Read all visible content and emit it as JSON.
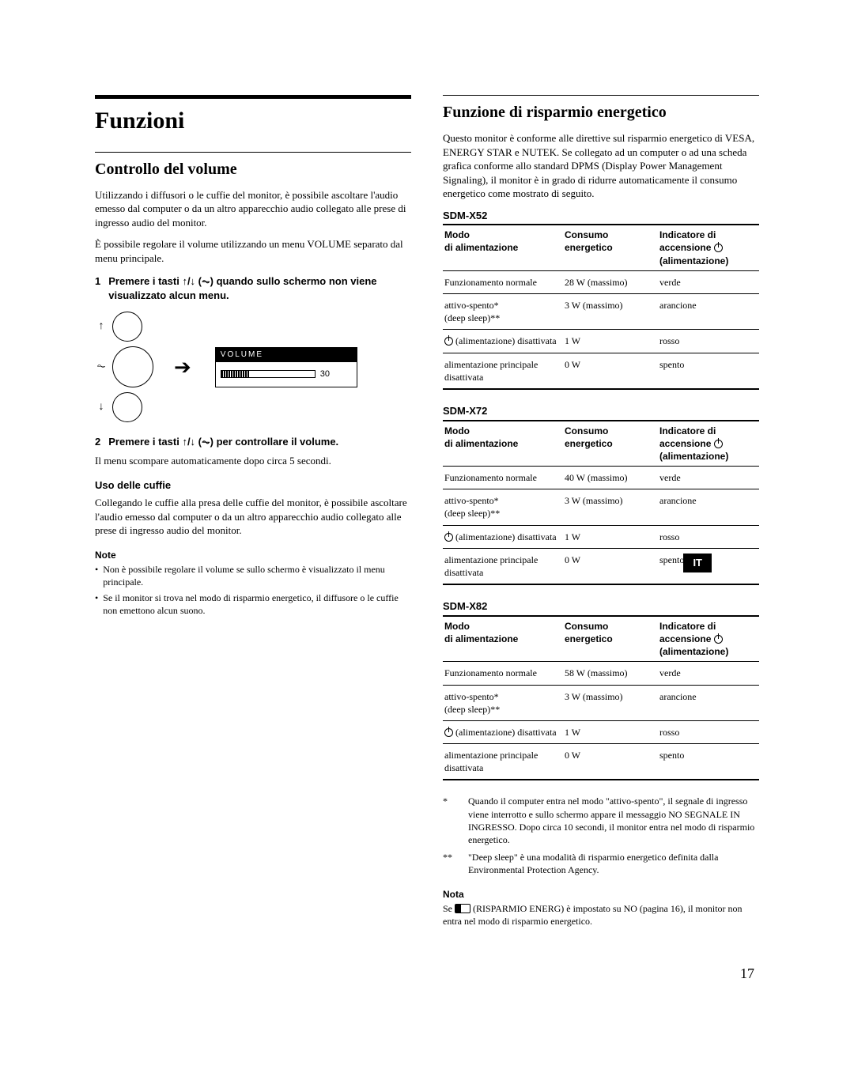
{
  "left": {
    "h1": "Funzioni",
    "h2": "Controllo del volume",
    "intro": "Utilizzando i diffusori o le cuffie del monitor, è possibile ascoltare l'audio emesso dal computer o da un altro apparecchio audio collegato alle prese di ingresso audio del monitor.",
    "intro2": "È possibile regolare il volume utilizzando un menu VOLUME separato dal menu principale.",
    "step1_num": "1",
    "step1": "Premere i tasti ↑/↓ (⏦) quando sullo schermo non viene visualizzato alcun menu.",
    "osd_title": "VOLUME",
    "osd_value": "30",
    "step2_num": "2",
    "step2": "Premere i tasti ↑/↓ (⏦) per controllare il volume.",
    "after_step2": "Il menu scompare automaticamente dopo circa 5 secondi.",
    "headphones_title": "Uso delle cuffie",
    "headphones_body": "Collegando le cuffie alla presa delle cuffie del monitor, è possibile ascoltare l'audio emesso dal computer o da un altro apparecchio audio collegato alle prese di ingresso audio del monitor.",
    "note_title": "Note",
    "note1": "Non è possibile regolare il volume se sullo schermo è visualizzato il menu principale.",
    "note2": "Se il monitor si trova nel modo di risparmio energetico, il diffusore o le cuffie non emettono alcun suono."
  },
  "right": {
    "h2": "Funzione di risparmio energetico",
    "intro": "Questo monitor è conforme alle direttive sul risparmio energetico di VESA, ENERGY STAR e NUTEK. Se collegato ad un computer o ad una scheda grafica conforme allo standard DPMS (Display Power Management Signaling), il monitor è in grado di ridurre automaticamente il consumo energetico come mostrato di seguito.",
    "th_mode": "Modo di alimentazione",
    "th_power": "Consumo energetico",
    "th_ind1": "Indicatore di",
    "th_ind2": "accensione",
    "th_ind3": "(alimentazione)",
    "models": [
      {
        "name": "SDM-X52",
        "rows": [
          {
            "mode": "Funzionamento normale",
            "power": "28 W (massimo)",
            "ind": "verde"
          },
          {
            "mode": "attivo-spento*\n(deep sleep)**",
            "power": "3 W (massimo)",
            "ind": "arancione"
          },
          {
            "mode": "⏻ (alimentazione) disattivata",
            "power": "1 W",
            "ind": "rosso",
            "pwr": true
          },
          {
            "mode": "alimentazione principale disattivata",
            "power": "0 W",
            "ind": "spento"
          }
        ]
      },
      {
        "name": "SDM-X72",
        "rows": [
          {
            "mode": "Funzionamento normale",
            "power": "40 W (massimo)",
            "ind": "verde"
          },
          {
            "mode": "attivo-spento*\n(deep sleep)**",
            "power": "3 W (massimo)",
            "ind": "arancione"
          },
          {
            "mode": "⏻ (alimentazione) disattivata",
            "power": "1 W",
            "ind": "rosso",
            "pwr": true
          },
          {
            "mode": "alimentazione principale disattivata",
            "power": "0 W",
            "ind": "spento"
          }
        ]
      },
      {
        "name": "SDM-X82",
        "rows": [
          {
            "mode": "Funzionamento normale",
            "power": "58 W (massimo)",
            "ind": "verde"
          },
          {
            "mode": "attivo-spento*\n(deep sleep)**",
            "power": "3 W (massimo)",
            "ind": "arancione"
          },
          {
            "mode": "⏻ (alimentazione) disattivata",
            "power": "1 W",
            "ind": "rosso",
            "pwr": true
          },
          {
            "mode": "alimentazione principale disattivata",
            "power": "0 W",
            "ind": "spento"
          }
        ]
      }
    ],
    "fn1_mark": "*",
    "fn1": "Quando il computer entra nel modo \"attivo-spento\", il segnale di ingresso viene interrotto e sullo schermo appare il messaggio NO SEGNALE IN INGRESSO. Dopo circa 10 secondi, il monitor entra nel modo di risparmio energetico.",
    "fn2_mark": "**",
    "fn2": "\"Deep sleep\" è una modalità di risparmio energetico definita dalla Environmental Protection Agency.",
    "nota_title": "Nota",
    "nota_body_pre": "Se ",
    "nota_body_post": " (RISPARMIO ENERG) è impostato su NO (pagina 16), il monitor non entra nel modo di risparmio energetico."
  },
  "lang_tab": "IT",
  "page_number": "17"
}
